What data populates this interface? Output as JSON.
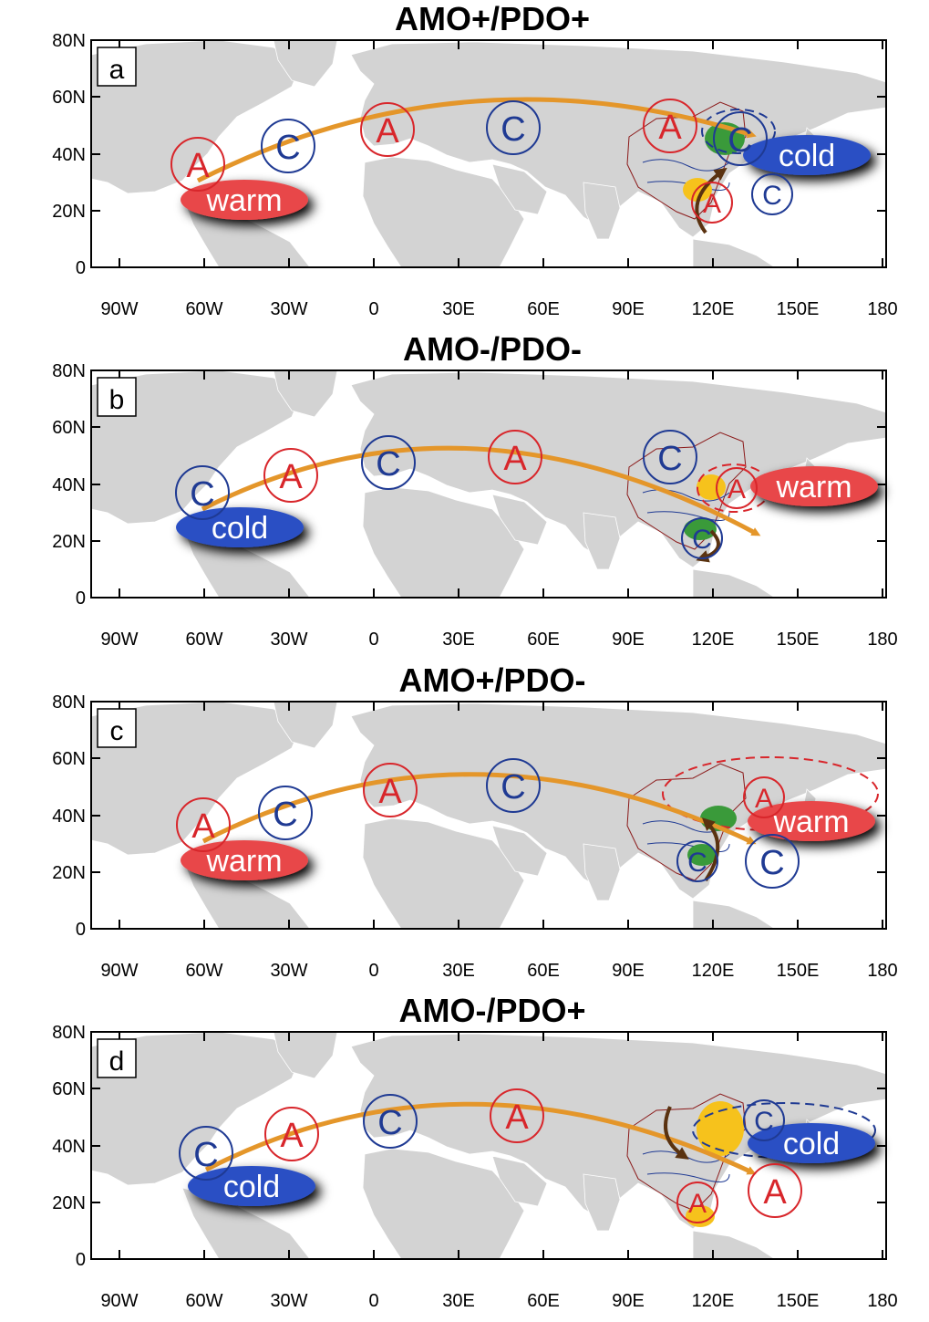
{
  "panels": [
    {
      "id": "a",
      "title": "AMO+/PDO+",
      "letter": "a",
      "atlantic_blob": {
        "label": "warm",
        "color": "#e8474a"
      },
      "pacific_blob": {
        "label": "cold",
        "color": "#2a4fc4"
      },
      "centers": [
        {
          "t": "A",
          "c": "red"
        },
        {
          "t": "C",
          "c": "blue"
        },
        {
          "t": "A",
          "c": "red"
        },
        {
          "t": "C",
          "c": "blue"
        },
        {
          "t": "A",
          "c": "red"
        },
        {
          "t": "C",
          "c": "blue"
        },
        {
          "t": "C",
          "c": "blue"
        },
        {
          "t": "A",
          "c": "red"
        }
      ]
    },
    {
      "id": "b",
      "title": "AMO-/PDO-",
      "letter": "b",
      "atlantic_blob": {
        "label": "cold",
        "color": "#2a4fc4"
      },
      "pacific_blob": {
        "label": "warm",
        "color": "#e8474a"
      },
      "centers": [
        {
          "t": "C",
          "c": "blue"
        },
        {
          "t": "A",
          "c": "red"
        },
        {
          "t": "C",
          "c": "blue"
        },
        {
          "t": "A",
          "c": "red"
        },
        {
          "t": "C",
          "c": "blue"
        },
        {
          "t": "A",
          "c": "red"
        },
        {
          "t": "C",
          "c": "blue"
        }
      ]
    },
    {
      "id": "c",
      "title": "AMO+/PDO-",
      "letter": "c",
      "atlantic_blob": {
        "label": "warm",
        "color": "#e8474a"
      },
      "pacific_blob": {
        "label": "warm",
        "color": "#e8474a"
      },
      "centers": [
        {
          "t": "A",
          "c": "red"
        },
        {
          "t": "C",
          "c": "blue"
        },
        {
          "t": "A",
          "c": "red"
        },
        {
          "t": "C",
          "c": "blue"
        },
        {
          "t": "A",
          "c": "red"
        },
        {
          "t": "C",
          "c": "blue"
        },
        {
          "t": "C",
          "c": "blue"
        }
      ]
    },
    {
      "id": "d",
      "title": "AMO-/PDO+",
      "letter": "d",
      "atlantic_blob": {
        "label": "cold",
        "color": "#2a4fc4"
      },
      "pacific_blob": {
        "label": "cold",
        "color": "#2a4fc4"
      },
      "centers": [
        {
          "t": "C",
          "c": "blue"
        },
        {
          "t": "A",
          "c": "red"
        },
        {
          "t": "C",
          "c": "blue"
        },
        {
          "t": "A",
          "c": "red"
        },
        {
          "t": "C",
          "c": "blue"
        },
        {
          "t": "A",
          "c": "red"
        },
        {
          "t": "A",
          "c": "red"
        }
      ]
    }
  ],
  "axes": {
    "lat_ticks": [
      "80N",
      "60N",
      "40N",
      "20N",
      "0"
    ],
    "lon_ticks": [
      "90W",
      "60W",
      "30W",
      "0",
      "30E",
      "60E",
      "90E",
      "120E",
      "150E",
      "180"
    ]
  },
  "colors": {
    "red": "#d8262b",
    "blue": "#1f3a93",
    "land": "#d3d3d3",
    "wave_arrow": "#e4962a",
    "green_patch": "#3a9a3a",
    "yellow_patch": "#f6c21c",
    "brown_arrow": "#5a3210"
  }
}
